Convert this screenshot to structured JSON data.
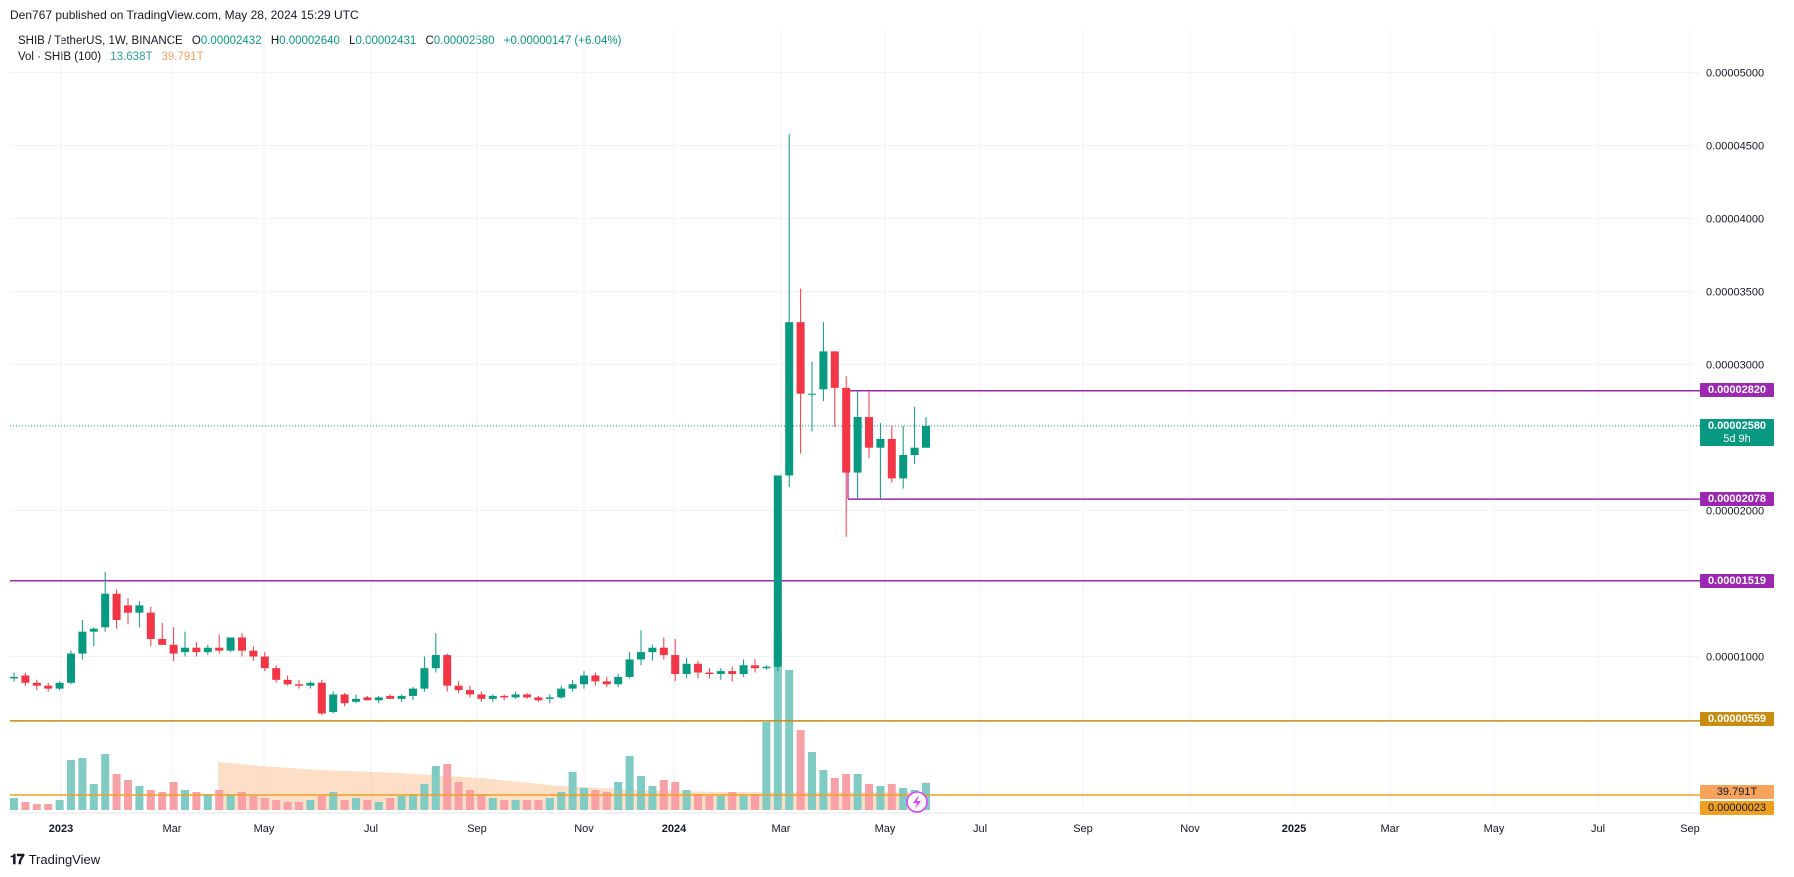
{
  "header": {
    "publisher": "Den767 published on TradingView.com, May 28, 2024 15:29 UTC"
  },
  "legend": {
    "symbol": "SHIB / TetherUS, 1W, BINANCE",
    "o_label": "O",
    "o_value": "0.00002432",
    "h_label": "H",
    "h_value": "0.00002640",
    "l_label": "L",
    "l_value": "0.00002431",
    "c_label": "C",
    "c_value": "0.00002580",
    "change": "+0.00000147 (+6.04%)",
    "vol_label": "Vol · SHIB (100)",
    "vol_value1": "13.638T",
    "vol_value2": "39.791T"
  },
  "footer": {
    "brand": "TradingView"
  },
  "price_tags": {
    "resistance": "0.00002820",
    "last": "0.00002580",
    "countdown": "5d 9h",
    "support": "0.00002078",
    "level_mid": "0.00001519",
    "level_low": "0.00000559",
    "volume": "39.791T",
    "volume_low": "0.00000023"
  },
  "colors": {
    "up": "#089981",
    "down": "#f23645",
    "level_purple": "#9c27b0",
    "level_orange": "#c78c10",
    "volume_ma": "#f7a35c",
    "last_price": "#089981"
  },
  "chart_data": {
    "type": "candlestick",
    "symbol": "SHIB / TetherUS",
    "timeframe": "1W",
    "exchange": "BINANCE",
    "y_axis_ticks": [
      "0.00005000",
      "0.00004500",
      "0.00004000",
      "0.00003500",
      "0.00003000",
      "0.00002000",
      "0.00001000"
    ],
    "x_axis_ticks": [
      "2023",
      "Mar",
      "May",
      "Jul",
      "Sep",
      "Nov",
      "2024",
      "Mar",
      "May",
      "Jul",
      "Sep",
      "Nov",
      "2025",
      "Mar",
      "May",
      "Jul",
      "Sep"
    ],
    "ylim": [
      0.0,
      5.3e-05
    ],
    "horizontal_levels": [
      2.82e-05,
      2.078e-05,
      1.519e-05,
      5.59e-06
    ],
    "last_price": 2.58e-05,
    "candles": [
      {
        "o": 8.5e-06,
        "h": 8.9e-06,
        "l": 8.3e-06,
        "c": 8.6e-06
      },
      {
        "o": 8.7e-06,
        "h": 8.9e-06,
        "l": 8e-06,
        "c": 8.2e-06
      },
      {
        "o": 8.2e-06,
        "h": 8.4e-06,
        "l": 7.7e-06,
        "c": 8e-06
      },
      {
        "o": 8e-06,
        "h": 8.2e-06,
        "l": 7.6e-06,
        "c": 7.8e-06
      },
      {
        "o": 7.8e-06,
        "h": 8.3e-06,
        "l": 7.7e-06,
        "c": 8.2e-06
      },
      {
        "o": 8.2e-06,
        "h": 1.04e-05,
        "l": 8.1e-06,
        "c": 1.02e-05
      },
      {
        "o": 1.02e-05,
        "h": 1.25e-05,
        "l": 9.8e-06,
        "c": 1.17e-05
      },
      {
        "o": 1.17e-05,
        "h": 1.2e-05,
        "l": 1.07e-05,
        "c": 1.19e-05
      },
      {
        "o": 1.2e-05,
        "h": 1.58e-05,
        "l": 1.17e-05,
        "c": 1.43e-05
      },
      {
        "o": 1.43e-05,
        "h": 1.46e-05,
        "l": 1.19e-05,
        "c": 1.25e-05
      },
      {
        "o": 1.35e-05,
        "h": 1.4e-05,
        "l": 1.22e-05,
        "c": 1.3e-05
      },
      {
        "o": 1.3e-05,
        "h": 1.38e-05,
        "l": 1.2e-05,
        "c": 1.35e-05
      },
      {
        "o": 1.3e-05,
        "h": 1.34e-05,
        "l": 1.07e-05,
        "c": 1.12e-05
      },
      {
        "o": 1.12e-05,
        "h": 1.23e-05,
        "l": 1.08e-05,
        "c": 1.08e-05
      },
      {
        "o": 1.08e-05,
        "h": 1.2e-05,
        "l": 9.7e-06,
        "c": 1.02e-05
      },
      {
        "o": 1.03e-05,
        "h": 1.17e-05,
        "l": 1e-05,
        "c": 1.06e-05
      },
      {
        "o": 1.06e-05,
        "h": 1.1e-05,
        "l": 1e-05,
        "c": 1.03e-05
      },
      {
        "o": 1.03e-05,
        "h": 1.08e-05,
        "l": 1.01e-05,
        "c": 1.06e-05
      },
      {
        "o": 1.06e-05,
        "h": 1.15e-05,
        "l": 1.02e-05,
        "c": 1.04e-05
      },
      {
        "o": 1.04e-05,
        "h": 1.12e-05,
        "l": 1.03e-05,
        "c": 1.13e-05
      },
      {
        "o": 1.13e-05,
        "h": 1.16e-05,
        "l": 1e-05,
        "c": 1.04e-05
      },
      {
        "o": 1.04e-05,
        "h": 1.07e-05,
        "l": 9.7e-06,
        "c": 1e-05
      },
      {
        "o": 1e-05,
        "h": 1.03e-05,
        "l": 9e-06,
        "c": 9.2e-06
      },
      {
        "o": 9.2e-06,
        "h": 9.4e-06,
        "l": 8.2e-06,
        "c": 8.4e-06
      },
      {
        "o": 8.4e-06,
        "h": 8.7e-06,
        "l": 8e-06,
        "c": 8.1e-06
      },
      {
        "o": 8.1e-06,
        "h": 8.4e-06,
        "l": 7.8e-06,
        "c": 8e-06
      },
      {
        "o": 8e-06,
        "h": 8.3e-06,
        "l": 7.8e-06,
        "c": 8.2e-06
      },
      {
        "o": 8.2e-06,
        "h": 8.4e-06,
        "l": 6e-06,
        "c": 6.1e-06
      },
      {
        "o": 6.2e-06,
        "h": 7.6e-06,
        "l": 6.1e-06,
        "c": 7.4e-06
      },
      {
        "o": 7.4e-06,
        "h": 7.5e-06,
        "l": 6.6e-06,
        "c": 6.8e-06
      },
      {
        "o": 6.9e-06,
        "h": 7.4e-06,
        "l": 6.8e-06,
        "c": 7.1e-06
      },
      {
        "o": 7.2e-06,
        "h": 7.3e-06,
        "l": 7e-06,
        "c": 7e-06
      },
      {
        "o": 7e-06,
        "h": 7.3e-06,
        "l": 6.8e-06,
        "c": 7.2e-06
      },
      {
        "o": 7.3e-06,
        "h": 7.4e-06,
        "l": 7.1e-06,
        "c": 7.1e-06
      },
      {
        "o": 7.1e-06,
        "h": 7.4e-06,
        "l": 6.9e-06,
        "c": 7.3e-06
      },
      {
        "o": 7.3e-06,
        "h": 7.9e-06,
        "l": 7e-06,
        "c": 7.8e-06
      },
      {
        "o": 7.8e-06,
        "h": 1e-05,
        "l": 7.6e-06,
        "c": 9.2e-06
      },
      {
        "o": 9.2e-06,
        "h": 1.16e-05,
        "l": 8.9e-06,
        "c": 1.01e-05
      },
      {
        "o": 1.01e-05,
        "h": 1.02e-05,
        "l": 7.6e-06,
        "c": 8e-06
      },
      {
        "o": 8e-06,
        "h": 8.3e-06,
        "l": 7.5e-06,
        "c": 7.7e-06
      },
      {
        "o": 7.7e-06,
        "h": 8e-06,
        "l": 7.2e-06,
        "c": 7.4e-06
      },
      {
        "o": 7.4e-06,
        "h": 7.6e-06,
        "l": 6.9e-06,
        "c": 7.1e-06
      },
      {
        "o": 7.1e-06,
        "h": 7.4e-06,
        "l": 6.9e-06,
        "c": 7.3e-06
      },
      {
        "o": 7.3e-06,
        "h": 7.4e-06,
        "l": 7e-06,
        "c": 7.2e-06
      },
      {
        "o": 7.2e-06,
        "h": 7.6e-06,
        "l": 7.1e-06,
        "c": 7.4e-06
      },
      {
        "o": 7.4e-06,
        "h": 7.5e-06,
        "l": 7.1e-06,
        "c": 7.2e-06
      },
      {
        "o": 7.2e-06,
        "h": 7.3e-06,
        "l": 6.9e-06,
        "c": 7e-06
      },
      {
        "o": 7.1e-06,
        "h": 7.4e-06,
        "l": 6.8e-06,
        "c": 7.2e-06
      },
      {
        "o": 7.2e-06,
        "h": 8e-06,
        "l": 7.1e-06,
        "c": 7.8e-06
      },
      {
        "o": 7.8e-06,
        "h": 8.4e-06,
        "l": 7.6e-06,
        "c": 8.1e-06
      },
      {
        "o": 8.1e-06,
        "h": 9e-06,
        "l": 7.8e-06,
        "c": 8.7e-06
      },
      {
        "o": 8.7e-06,
        "h": 8.9e-06,
        "l": 8e-06,
        "c": 8.3e-06
      },
      {
        "o": 8.3e-06,
        "h": 8.6e-06,
        "l": 7.9e-06,
        "c": 8.1e-06
      },
      {
        "o": 8.1e-06,
        "h": 8.8e-06,
        "l": 7.9e-06,
        "c": 8.6e-06
      },
      {
        "o": 8.6e-06,
        "h": 1.03e-05,
        "l": 8.5e-06,
        "c": 9.8e-06
      },
      {
        "o": 9.8e-06,
        "h": 1.18e-05,
        "l": 9.4e-06,
        "c": 1.03e-05
      },
      {
        "o": 1.03e-05,
        "h": 1.08e-05,
        "l": 9.7e-06,
        "c": 1.06e-05
      },
      {
        "o": 1.06e-05,
        "h": 1.13e-05,
        "l": 9.8e-06,
        "c": 1.01e-05
      },
      {
        "o": 1.01e-05,
        "h": 1.12e-05,
        "l": 8.3e-06,
        "c": 8.8e-06
      },
      {
        "o": 8.8e-06,
        "h": 9.9e-06,
        "l": 8.5e-06,
        "c": 9.5e-06
      },
      {
        "o": 9.5e-06,
        "h": 9.7e-06,
        "l": 8.5e-06,
        "c": 8.9e-06
      },
      {
        "o": 8.9e-06,
        "h": 9.2e-06,
        "l": 8.5e-06,
        "c": 8.8e-06
      },
      {
        "o": 8.8e-06,
        "h": 9.2e-06,
        "l": 8.4e-06,
        "c": 9e-06
      },
      {
        "o": 9e-06,
        "h": 9.3e-06,
        "l": 8.3e-06,
        "c": 8.8e-06
      },
      {
        "o": 8.8e-06,
        "h": 9.8e-06,
        "l": 8.6e-06,
        "c": 9.4e-06
      },
      {
        "o": 9.4e-06,
        "h": 9.8e-06,
        "l": 8.9e-06,
        "c": 9.2e-06
      },
      {
        "o": 9.2e-06,
        "h": 9.4e-06,
        "l": 9.1e-06,
        "c": 9.3e-06
      },
      {
        "o": 9.3e-06,
        "h": 2.24e-05,
        "l": 9e-06,
        "c": 2.24e-05
      },
      {
        "o": 2.24e-05,
        "h": 4.58e-05,
        "l": 2.16e-05,
        "c": 3.29e-05
      },
      {
        "o": 3.29e-05,
        "h": 3.52e-05,
        "l": 2.39e-05,
        "c": 2.8e-05
      },
      {
        "o": 2.8e-05,
        "h": 3.02e-05,
        "l": 2.54e-05,
        "c": 2.8e-05
      },
      {
        "o": 2.83e-05,
        "h": 3.29e-05,
        "l": 2.75e-05,
        "c": 3.09e-05
      },
      {
        "o": 3.09e-05,
        "h": 3.09e-05,
        "l": 2.57e-05,
        "c": 2.84e-05
      },
      {
        "o": 2.84e-05,
        "h": 2.92e-05,
        "l": 1.82e-05,
        "c": 2.26e-05
      },
      {
        "o": 2.26e-05,
        "h": 2.82e-05,
        "l": 2.08e-05,
        "c": 2.64e-05
      },
      {
        "o": 2.64e-05,
        "h": 2.82e-05,
        "l": 2.36e-05,
        "c": 2.43e-05
      },
      {
        "o": 2.43e-05,
        "h": 2.6e-05,
        "l": 2.08e-05,
        "c": 2.49e-05
      },
      {
        "o": 2.49e-05,
        "h": 2.58e-05,
        "l": 2.19e-05,
        "c": 2.22e-05
      },
      {
        "o": 2.22e-05,
        "h": 2.58e-05,
        "l": 2.15e-05,
        "c": 2.38e-05
      },
      {
        "o": 2.38e-05,
        "h": 2.71e-05,
        "l": 2.32e-05,
        "c": 2.43e-05
      },
      {
        "o": 2.43e-05,
        "h": 2.64e-05,
        "l": 2.43e-05,
        "c": 2.58e-05
      }
    ],
    "volume_units": "T",
    "volume": [
      6,
      4,
      3,
      3,
      5,
      25,
      26,
      13,
      28,
      18,
      15,
      12,
      10,
      9,
      14,
      10,
      9,
      8,
      10,
      8,
      9,
      7,
      6,
      5,
      4,
      4,
      5,
      7,
      9,
      5,
      6,
      5,
      4,
      6,
      7,
      8,
      13,
      22,
      23,
      14,
      10,
      8,
      6,
      5,
      5,
      5,
      5,
      6,
      9,
      19,
      11,
      10,
      9,
      14,
      27,
      17,
      12,
      15,
      14,
      10,
      8,
      7,
      7,
      9,
      7,
      8,
      44,
      88,
      70,
      40,
      29,
      20,
      16,
      18,
      18,
      13,
      12,
      13,
      11,
      10,
      13.6
    ],
    "volume_ma_label": "39.791T"
  }
}
